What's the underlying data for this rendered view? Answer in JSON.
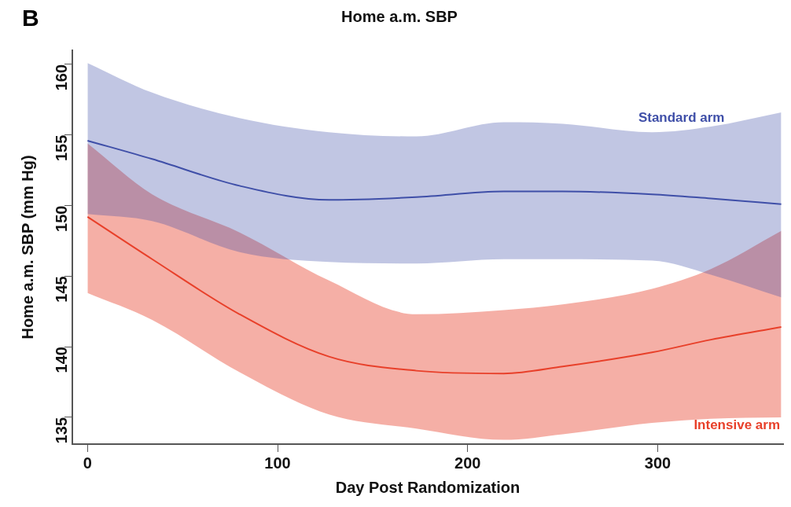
{
  "chart_data": {
    "type": "line",
    "title": "Home a.m. SBP",
    "xlabel": "Day Post Randomization",
    "ylabel": "Home a.m. SBP (mm Hg)",
    "annotations": [
      "B"
    ],
    "x": [
      0,
      34,
      80,
      127,
      173,
      219,
      250,
      297,
      328,
      365
    ],
    "series": [
      {
        "name": "Standard arm",
        "color": "#3f4fa8",
        "values": [
          154.6,
          153.3,
          151.4,
          150.4,
          150.6,
          151.0,
          151.0,
          150.8,
          150.5,
          150.1
        ],
        "lower": [
          149.4,
          148.9,
          146.7,
          146.0,
          145.9,
          146.2,
          146.2,
          146.1,
          145.1,
          143.5
        ],
        "upper": [
          160.1,
          158.0,
          156.2,
          155.2,
          154.9,
          155.9,
          155.8,
          155.2,
          155.6,
          156.6
        ]
      },
      {
        "name": "Intensive arm",
        "color": "#e8402a",
        "values": [
          149.2,
          146.2,
          142.3,
          139.3,
          138.3,
          138.1,
          138.6,
          139.6,
          140.5,
          141.4
        ],
        "lower": [
          143.8,
          141.9,
          138.2,
          135.2,
          134.2,
          133.4,
          133.8,
          134.6,
          134.9,
          135.0
        ],
        "upper": [
          154.4,
          150.8,
          148.1,
          144.7,
          142.3,
          142.6,
          143.0,
          144.1,
          145.5,
          148.2
        ]
      }
    ],
    "xlim": [
      -8,
      366
    ],
    "xticks": [
      0,
      100,
      200,
      300
    ],
    "ylim": [
      133.1,
      161
    ],
    "yticks": [
      135,
      140,
      145,
      150,
      155,
      160
    ],
    "grid": false,
    "legend": false,
    "marker": "none",
    "line_style": "solid"
  }
}
